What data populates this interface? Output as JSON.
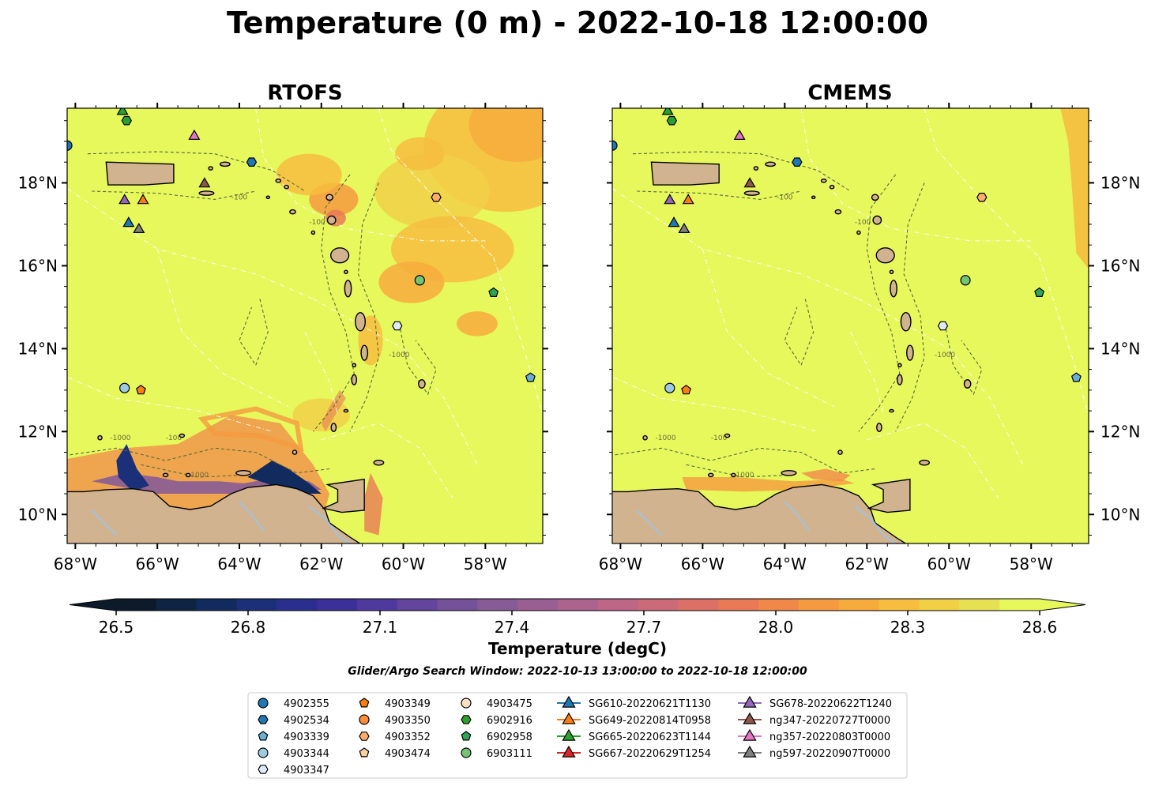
{
  "title": "Temperature (0 m) - 2022-10-18 12:00:00",
  "panels": [
    {
      "title": "RTOFS",
      "field": "rtofs"
    },
    {
      "title": "CMEMS",
      "field": "cmems"
    }
  ],
  "map": {
    "lon_range": [
      -68.2,
      -56.6
    ],
    "lat_range": [
      9.3,
      19.8
    ],
    "lon_ticks": [
      {
        "value": -68,
        "label": "68°W"
      },
      {
        "value": -66,
        "label": "66°W"
      },
      {
        "value": -64,
        "label": "64°W"
      },
      {
        "value": -62,
        "label": "62°W"
      },
      {
        "value": -60,
        "label": "60°W"
      },
      {
        "value": -58,
        "label": "58°W"
      }
    ],
    "lat_ticks": [
      {
        "value": 10,
        "label": "10°N"
      },
      {
        "value": 12,
        "label": "12°N"
      },
      {
        "value": 14,
        "label": "14°N"
      },
      {
        "value": 16,
        "label": "16°N"
      },
      {
        "value": 18,
        "label": "18°N"
      }
    ],
    "contour_label": "-1000",
    "contour_label_2": "-100",
    "colors": {
      "ocean_base": "#e6f85c",
      "land": "#d1b38f",
      "coast": "#000000",
      "river": "#a3c2e0",
      "eez": "#ffffff",
      "bathy": "#5a6b3a"
    }
  },
  "colorbar": {
    "label": "Temperature (degC)",
    "ticks": [
      "26.5",
      "26.8",
      "27.1",
      "27.4",
      "27.7",
      "28.0",
      "28.3",
      "28.6"
    ],
    "tick_values": [
      26.5,
      26.8,
      27.1,
      27.4,
      27.7,
      28.0,
      28.3,
      28.6
    ],
    "min": 26.4,
    "max": 28.7,
    "extend": "both",
    "colors": [
      "#0d1a2a",
      "#0f2342",
      "#122b5e",
      "#1c2f79",
      "#2a2f8f",
      "#3b2f9a",
      "#4e3a9e",
      "#62459d",
      "#745199",
      "#875c96",
      "#995f93",
      "#ac638e",
      "#bd6686",
      "#cd6a7a",
      "#dd7066",
      "#e97a55",
      "#f1884a",
      "#f59a40",
      "#f7ab3c",
      "#f6bd3f",
      "#f1d046",
      "#e6e152",
      "#e6f85c"
    ]
  },
  "search_window": "Glider/Argo Search Window: 2022-10-13 13:00:00 to 2022-10-18 12:00:00",
  "legend": [
    [
      {
        "label": "4902355",
        "marker": "circle",
        "color": "#1f77b4"
      },
      {
        "label": "4902534",
        "marker": "hexagon",
        "color": "#1f77b4"
      },
      {
        "label": "4903339",
        "marker": "pentagon",
        "color": "#6baed6"
      },
      {
        "label": "4903344",
        "marker": "circle",
        "color": "#9ecae1"
      },
      {
        "label": "4903347",
        "marker": "hexagon",
        "color": "#deebf7"
      }
    ],
    [
      {
        "label": "4903349",
        "marker": "pentagon",
        "color": "#ff7f0e"
      },
      {
        "label": "4903350",
        "marker": "circle",
        "color": "#fd8d3c"
      },
      {
        "label": "4903352",
        "marker": "hexagon",
        "color": "#fdae6b"
      },
      {
        "label": "4903474",
        "marker": "pentagon",
        "color": "#fdd0a2"
      }
    ],
    [
      {
        "label": "4903475",
        "marker": "circle",
        "color": "#fde0c5"
      },
      {
        "label": "6902916",
        "marker": "hexagon",
        "color": "#2ca02c"
      },
      {
        "label": "6902958",
        "marker": "pentagon",
        "color": "#31a354"
      },
      {
        "label": "6903111",
        "marker": "circle",
        "color": "#74c476"
      }
    ],
    [
      {
        "label": "SG610-20220621T1130",
        "marker": "triangle-line",
        "color": "#1f77b4"
      },
      {
        "label": "SG649-20220814T0958",
        "marker": "triangle-line",
        "color": "#ff7f0e"
      },
      {
        "label": "SG665-20220623T1144",
        "marker": "triangle-line",
        "color": "#2ca02c"
      },
      {
        "label": "SG667-20220629T1254",
        "marker": "triangle-line",
        "color": "#d62728"
      }
    ],
    [
      {
        "label": "SG678-20220622T1240",
        "marker": "triangle-line",
        "color": "#9467bd"
      },
      {
        "label": "ng347-20220727T0000",
        "marker": "triangle-line",
        "color": "#8c564b"
      },
      {
        "label": "ng357-20220803T0000",
        "marker": "triangle-line",
        "color": "#e377c2"
      },
      {
        "label": "ng597-20220907T0000",
        "marker": "triangle-line",
        "color": "#7f7f7f"
      }
    ]
  ],
  "observations": [
    {
      "id": "4902355",
      "lon": -68.2,
      "lat": 18.9,
      "marker": "circle",
      "color": "#1f77b4"
    },
    {
      "id": "4902534",
      "lon": -63.7,
      "lat": 18.5,
      "marker": "hexagon",
      "color": "#1f77b4"
    },
    {
      "id": "4903339",
      "lon": -56.9,
      "lat": 13.3,
      "marker": "pentagon",
      "color": "#6baed6"
    },
    {
      "id": "4903344",
      "lon": -66.8,
      "lat": 13.05,
      "marker": "circle",
      "color": "#9ecae1"
    },
    {
      "id": "4903347",
      "lon": -60.15,
      "lat": 14.55,
      "marker": "hexagon",
      "color": "#deebf7"
    },
    {
      "id": "4903349",
      "lon": -66.4,
      "lat": 13.0,
      "marker": "pentagon",
      "color": "#ff7f0e"
    },
    {
      "id": "4903352",
      "lon": -59.2,
      "lat": 17.65,
      "marker": "hexagon",
      "color": "#fdae6b"
    },
    {
      "id": "6902916",
      "lon": -66.75,
      "lat": 19.5,
      "marker": "hexagon",
      "color": "#2ca02c"
    },
    {
      "id": "6902958",
      "lon": -57.8,
      "lat": 15.35,
      "marker": "pentagon",
      "color": "#31a354"
    },
    {
      "id": "6903111",
      "lon": -59.6,
      "lat": 15.65,
      "marker": "circle",
      "color": "#74c476"
    },
    {
      "id": "SG610-20220621T1130",
      "lon": -66.7,
      "lat": 17.05,
      "marker": "triangle",
      "color": "#1f77b4"
    },
    {
      "id": "SG649-20220814T0958",
      "lon": -66.35,
      "lat": 17.6,
      "marker": "triangle",
      "color": "#ff7f0e"
    },
    {
      "id": "SG665-20220623T1144",
      "lon": -66.85,
      "lat": 19.75,
      "marker": "triangle",
      "color": "#2ca02c"
    },
    {
      "id": "SG678-20220622T1240",
      "lon": -66.8,
      "lat": 17.6,
      "marker": "triangle",
      "color": "#9467bd"
    },
    {
      "id": "ng347-20220727T0000",
      "lon": -64.85,
      "lat": 18.0,
      "marker": "triangle",
      "color": "#8c564b"
    },
    {
      "id": "ng357-20220803T0000",
      "lon": -65.1,
      "lat": 19.15,
      "marker": "triangle",
      "color": "#e377c2"
    },
    {
      "id": "ng597-20220907T0000",
      "lon": -66.45,
      "lat": 16.9,
      "marker": "triangle",
      "color": "#7f7f7f"
    }
  ]
}
